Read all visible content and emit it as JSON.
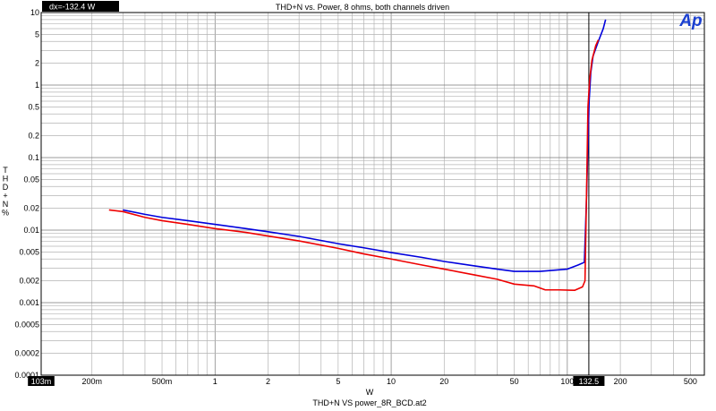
{
  "chart_data": {
    "type": "line",
    "title": "THD+N vs. Power, 8 ohms, both channels driven",
    "xlabel": "W",
    "ylabel": "THD+N %",
    "footer": "THD+N VS power_8R_BCD.at2",
    "cursor_readout": "dx=-132.4  W",
    "logo": "Ap",
    "x_scale": "log",
    "y_scale": "log",
    "xlim": [
      0.103,
      600
    ],
    "ylim": [
      0.0001,
      10
    ],
    "grid": true,
    "x_ticks": [
      {
        "v": 0.103,
        "label": "103m",
        "highlight": true
      },
      {
        "v": 0.2,
        "label": "200m"
      },
      {
        "v": 0.5,
        "label": "500m"
      },
      {
        "v": 1,
        "label": "1"
      },
      {
        "v": 2,
        "label": "2"
      },
      {
        "v": 5,
        "label": "5"
      },
      {
        "v": 10,
        "label": "10"
      },
      {
        "v": 20,
        "label": "20"
      },
      {
        "v": 50,
        "label": "50"
      },
      {
        "v": 100,
        "label": "100"
      },
      {
        "v": 132.5,
        "label": "132.5",
        "highlight": true
      },
      {
        "v": 200,
        "label": "200"
      },
      {
        "v": 500,
        "label": "500"
      }
    ],
    "y_ticks": [
      {
        "v": 10,
        "label": "10"
      },
      {
        "v": 5,
        "label": "5"
      },
      {
        "v": 2,
        "label": "2"
      },
      {
        "v": 1,
        "label": "1"
      },
      {
        "v": 0.5,
        "label": "0.5"
      },
      {
        "v": 0.2,
        "label": "0.2"
      },
      {
        "v": 0.1,
        "label": "0.1"
      },
      {
        "v": 0.05,
        "label": "0.05"
      },
      {
        "v": 0.02,
        "label": "0.02"
      },
      {
        "v": 0.01,
        "label": "0.01"
      },
      {
        "v": 0.005,
        "label": "0.005"
      },
      {
        "v": 0.002,
        "label": "0.002"
      },
      {
        "v": 0.001,
        "label": "0.001"
      },
      {
        "v": 0.0005,
        "label": "0.0005"
      },
      {
        "v": 0.0002,
        "label": "0.0002"
      },
      {
        "v": 0.0001,
        "label": "0.0001"
      }
    ],
    "series": [
      {
        "color": "#0000dd",
        "points": [
          [
            0.3,
            0.019
          ],
          [
            0.4,
            0.0165
          ],
          [
            0.5,
            0.015
          ],
          [
            0.7,
            0.0135
          ],
          [
            1,
            0.012
          ],
          [
            1.5,
            0.0105
          ],
          [
            2,
            0.0095
          ],
          [
            3,
            0.0082
          ],
          [
            5,
            0.0065
          ],
          [
            7,
            0.0057
          ],
          [
            10,
            0.0049
          ],
          [
            15,
            0.0042
          ],
          [
            20,
            0.0037
          ],
          [
            30,
            0.0032
          ],
          [
            40,
            0.0029
          ],
          [
            50,
            0.0027
          ],
          [
            70,
            0.0027
          ],
          [
            100,
            0.0029
          ],
          [
            115,
            0.0033
          ],
          [
            125,
            0.0036
          ],
          [
            128,
            0.02
          ],
          [
            131,
            0.15
          ],
          [
            133,
            0.6
          ],
          [
            136,
            1.5
          ],
          [
            140,
            2.5
          ],
          [
            150,
            4
          ],
          [
            160,
            6
          ],
          [
            165,
            8
          ]
        ]
      },
      {
        "color": "#ee0000",
        "points": [
          [
            0.25,
            0.019
          ],
          [
            0.3,
            0.018
          ],
          [
            0.4,
            0.015
          ],
          [
            0.5,
            0.0135
          ],
          [
            0.7,
            0.012
          ],
          [
            1,
            0.0105
          ],
          [
            1.5,
            0.0093
          ],
          [
            2,
            0.0083
          ],
          [
            3,
            0.0071
          ],
          [
            5,
            0.0056
          ],
          [
            7,
            0.0047
          ],
          [
            10,
            0.004
          ],
          [
            15,
            0.0033
          ],
          [
            20,
            0.0029
          ],
          [
            30,
            0.0024
          ],
          [
            40,
            0.0021
          ],
          [
            50,
            0.0018
          ],
          [
            65,
            0.0017
          ],
          [
            75,
            0.0015
          ],
          [
            90,
            0.0015
          ],
          [
            110,
            0.00148
          ],
          [
            122,
            0.00165
          ],
          [
            126,
            0.002
          ],
          [
            129,
            0.05
          ],
          [
            131,
            0.5
          ],
          [
            134,
            1.2
          ],
          [
            138,
            2.2
          ],
          [
            145,
            3.5
          ],
          [
            150,
            4.2
          ]
        ]
      }
    ]
  }
}
